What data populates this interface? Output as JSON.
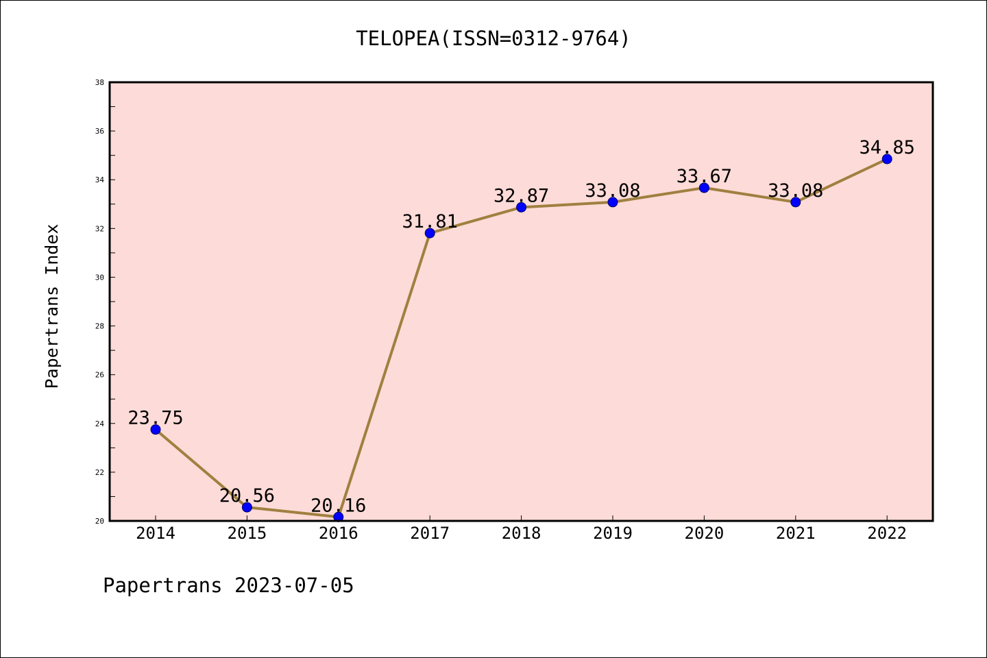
{
  "chart_data": {
    "type": "line",
    "title": "TELOPEA(ISSN=0312-9764)",
    "xlabel": "",
    "ylabel": "Papertrans Index",
    "x": [
      "2014",
      "2015",
      "2016",
      "2017",
      "2018",
      "2019",
      "2020",
      "2021",
      "2022"
    ],
    "series": [
      {
        "values": [
          23.75,
          20.56,
          20.16,
          31.81,
          32.87,
          33.08,
          33.67,
          33.08,
          34.85
        ],
        "labels": [
          "23.75",
          "20.56",
          "20.16",
          "31.81",
          "32.87",
          "33.08",
          "33.67",
          "33.08",
          "34.85"
        ]
      }
    ],
    "ylim": [
      20,
      38
    ],
    "yticks": [
      "20",
      "22",
      "24",
      "26",
      "28",
      "30",
      "32",
      "34",
      "36",
      "38"
    ],
    "grid": false,
    "legend": "none",
    "colors": {
      "background": "#fddbd8",
      "line": "#a08040",
      "marker": "#0000ff"
    }
  },
  "footer": {
    "text": "Papertrans 2023-07-05"
  }
}
